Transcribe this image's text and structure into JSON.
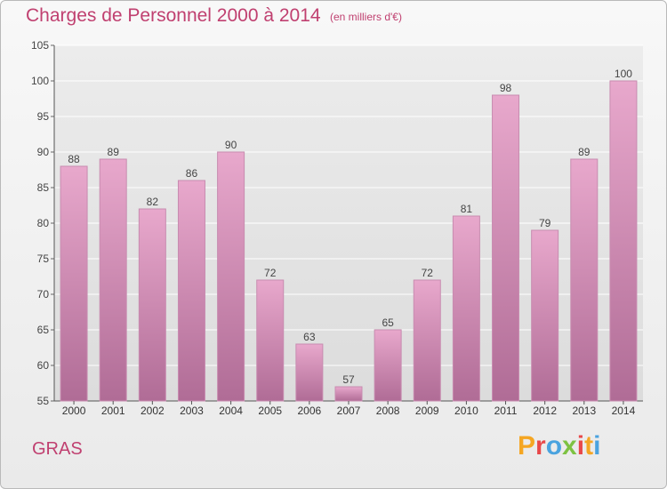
{
  "header": {
    "title": "Charges de Personnel 2000 à 2014",
    "subtitle": "(en milliers d'€)"
  },
  "footer": {
    "commune": "GRAS",
    "logo_text": "Proxiti"
  },
  "colors": {
    "title": "#c04070",
    "bar_top": "#e8a8cc",
    "bar_bottom": "#b06c96",
    "bar_edge": "#c88cb0",
    "grid": "#ffffff",
    "plot_bg": "#e3e3e3"
  },
  "chart_data": {
    "type": "bar",
    "title": "Charges de Personnel 2000 à 2014",
    "subtitle": "(en milliers d'€)",
    "categories": [
      "2000",
      "2001",
      "2002",
      "2003",
      "2004",
      "2005",
      "2006",
      "2007",
      "2008",
      "2009",
      "2010",
      "2011",
      "2012",
      "2013",
      "2014"
    ],
    "values": [
      88,
      89,
      82,
      86,
      90,
      72,
      63,
      57,
      65,
      72,
      81,
      98,
      79,
      89,
      100
    ],
    "ylim": [
      55,
      105
    ],
    "yticks": [
      55,
      60,
      65,
      70,
      75,
      80,
      85,
      90,
      95,
      100,
      105
    ],
    "grid": true,
    "data_labels": true
  }
}
